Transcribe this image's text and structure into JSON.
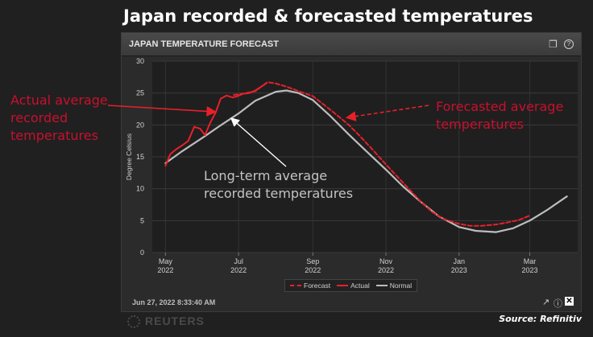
{
  "headline": "Japan recorded & forecasted temperatures",
  "panel": {
    "title": "JAPAN TEMPERATURE FORECAST",
    "timestamp": "Jun 27, 2022 8:33:40 AM",
    "icons": [
      "window-restore-icon",
      "help-icon",
      "external-link-icon",
      "info-icon",
      "close-icon"
    ]
  },
  "annotations": {
    "actual": [
      "Actual average",
      "recorded",
      "temperatures"
    ],
    "forecast": [
      "Forecasted average",
      "temperatures"
    ],
    "normal": [
      "Long-term average",
      "recorded temperatures"
    ]
  },
  "watermark": "REUTERS",
  "source": "Source: Refinitiv",
  "colors": {
    "actual": "#e8202a",
    "forecast": "#e8202a",
    "normal": "#bdbdbd",
    "annotation_red": "#c8102e",
    "annotation_grey": "#c4c4c4"
  },
  "chart_data": {
    "type": "line",
    "title": "JAPAN TEMPERATURE FORECAST",
    "xlabel": "",
    "ylabel": "Degree Celsius",
    "ylim": [
      0,
      30
    ],
    "yticks": [
      0,
      5,
      10,
      15,
      20,
      25,
      30
    ],
    "xticks": [
      {
        "date": "2022-05-01",
        "label": [
          "May",
          "2022"
        ]
      },
      {
        "date": "2022-07-01",
        "label": [
          "Jul",
          "2022"
        ]
      },
      {
        "date": "2022-09-01",
        "label": [
          "Sep",
          "2022"
        ]
      },
      {
        "date": "2022-11-01",
        "label": [
          "Nov",
          "2022"
        ]
      },
      {
        "date": "2023-01-01",
        "label": [
          "Jan",
          "2023"
        ]
      },
      {
        "date": "2023-03-01",
        "label": [
          "Mar",
          "2023"
        ]
      }
    ],
    "xlim": [
      "2022-04-20",
      "2023-04-10"
    ],
    "grid": true,
    "legend": "bottom",
    "series": [
      {
        "name": "Forecast",
        "style": "dashed",
        "points": [
          [
            "2022-06-27",
            24.7
          ],
          [
            "2022-07-05",
            24.9
          ],
          [
            "2022-07-15",
            25.3
          ],
          [
            "2022-07-25",
            26.7
          ],
          [
            "2022-08-01",
            26.5
          ],
          [
            "2022-08-10",
            26.0
          ],
          [
            "2022-08-20",
            25.3
          ],
          [
            "2022-09-01",
            24.5
          ],
          [
            "2022-09-10",
            23.2
          ],
          [
            "2022-09-20",
            21.7
          ],
          [
            "2022-10-01",
            20.0
          ],
          [
            "2022-10-10",
            18.3
          ],
          [
            "2022-10-20",
            16.3
          ],
          [
            "2022-11-01",
            13.8
          ],
          [
            "2022-11-10",
            12.0
          ],
          [
            "2022-11-20",
            10.0
          ],
          [
            "2022-12-01",
            7.8
          ],
          [
            "2022-12-10",
            6.3
          ],
          [
            "2022-12-20",
            5.2
          ],
          [
            "2023-01-01",
            4.5
          ],
          [
            "2023-01-10",
            4.2
          ],
          [
            "2023-01-20",
            4.2
          ],
          [
            "2023-02-01",
            4.4
          ],
          [
            "2023-02-10",
            4.7
          ],
          [
            "2023-02-20",
            5.1
          ],
          [
            "2023-03-01",
            5.8
          ]
        ]
      },
      {
        "name": "Actual",
        "style": "solid",
        "points": [
          [
            "2022-05-01",
            13.6
          ],
          [
            "2022-05-05",
            15.4
          ],
          [
            "2022-05-10",
            16.2
          ],
          [
            "2022-05-15",
            16.8
          ],
          [
            "2022-05-20",
            17.5
          ],
          [
            "2022-05-25",
            19.7
          ],
          [
            "2022-05-30",
            19.4
          ],
          [
            "2022-06-03",
            18.4
          ],
          [
            "2022-06-07",
            20.2
          ],
          [
            "2022-06-12",
            22.0
          ],
          [
            "2022-06-16",
            24.1
          ],
          [
            "2022-06-21",
            24.6
          ],
          [
            "2022-06-26",
            24.3
          ],
          [
            "2022-06-30",
            24.5
          ],
          [
            "2022-07-05",
            24.9
          ],
          [
            "2022-07-10",
            25.0
          ],
          [
            "2022-07-15",
            25.4
          ],
          [
            "2022-07-20",
            26.0
          ],
          [
            "2022-07-24",
            26.5
          ]
        ]
      },
      {
        "name": "Normal",
        "style": "solid",
        "points": [
          [
            "2022-05-01",
            14.0
          ],
          [
            "2022-05-15",
            15.9
          ],
          [
            "2022-06-01",
            18.0
          ],
          [
            "2022-06-15",
            19.8
          ],
          [
            "2022-07-01",
            21.8
          ],
          [
            "2022-07-15",
            23.8
          ],
          [
            "2022-08-01",
            25.2
          ],
          [
            "2022-08-10",
            25.4
          ],
          [
            "2022-08-20",
            25.0
          ],
          [
            "2022-09-01",
            23.9
          ],
          [
            "2022-09-15",
            21.5
          ],
          [
            "2022-10-01",
            18.5
          ],
          [
            "2022-10-15",
            16.0
          ],
          [
            "2022-11-01",
            13.0
          ],
          [
            "2022-11-15",
            10.4
          ],
          [
            "2022-12-01",
            7.8
          ],
          [
            "2022-12-15",
            5.7
          ],
          [
            "2023-01-01",
            4.0
          ],
          [
            "2023-01-15",
            3.4
          ],
          [
            "2023-02-01",
            3.2
          ],
          [
            "2023-02-15",
            3.8
          ],
          [
            "2023-03-01",
            5.0
          ],
          [
            "2023-03-15",
            6.6
          ],
          [
            "2023-04-01",
            8.8
          ]
        ]
      }
    ]
  }
}
